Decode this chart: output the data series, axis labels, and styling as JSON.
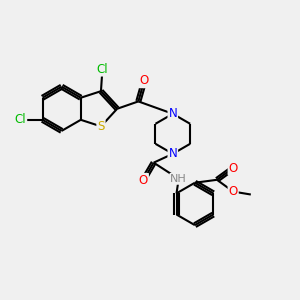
{
  "bg_color": "#f0f0f0",
  "bond_color": "#000000",
  "bond_width": 1.5,
  "atom_colors": {
    "Cl": "#00bb00",
    "S": "#ccaa00",
    "N": "#0000ff",
    "O": "#ff0000",
    "C": "#000000",
    "H": "#808080"
  },
  "font_size": 8.5,
  "fig_bg": "#f0f0f0"
}
